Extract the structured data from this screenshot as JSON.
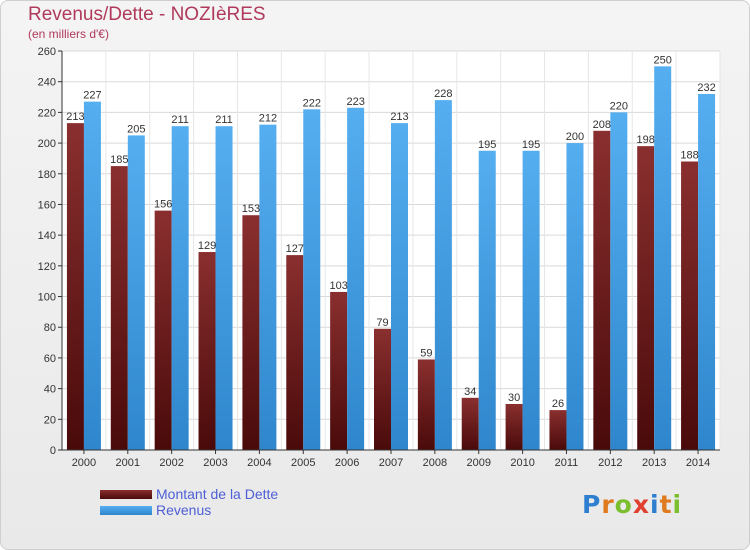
{
  "header": {
    "title": "Revenus/Dette - NOZIèRES",
    "subtitle": "(en milliers d'€)"
  },
  "legend": {
    "items": [
      {
        "label": "Montant de la Dette",
        "color": "#6e1a1a"
      },
      {
        "label": "Revenus",
        "color": "#4aa3e8"
      }
    ]
  },
  "logo": {
    "text": "Proxiti"
  },
  "chart_data": {
    "type": "bar",
    "categories": [
      "2000",
      "2001",
      "2002",
      "2003",
      "2004",
      "2005",
      "2006",
      "2007",
      "2008",
      "2009",
      "2010",
      "2011",
      "2012",
      "2013",
      "2014"
    ],
    "series": [
      {
        "name": "Montant de la Dette",
        "color": "#7a2525",
        "values": [
          213,
          185,
          156,
          129,
          153,
          127,
          103,
          79,
          59,
          34,
          30,
          26,
          208,
          198,
          188
        ]
      },
      {
        "name": "Revenus",
        "color": "#4aa3e8",
        "values": [
          227,
          205,
          211,
          211,
          212,
          222,
          223,
          213,
          228,
          195,
          195,
          200,
          220,
          250,
          232
        ]
      }
    ],
    "ylim": [
      0,
      260
    ],
    "yticks": [
      0,
      20,
      40,
      60,
      80,
      100,
      120,
      140,
      160,
      180,
      200,
      220,
      240,
      260
    ],
    "grid": true,
    "legend_position": "bottom-left"
  }
}
